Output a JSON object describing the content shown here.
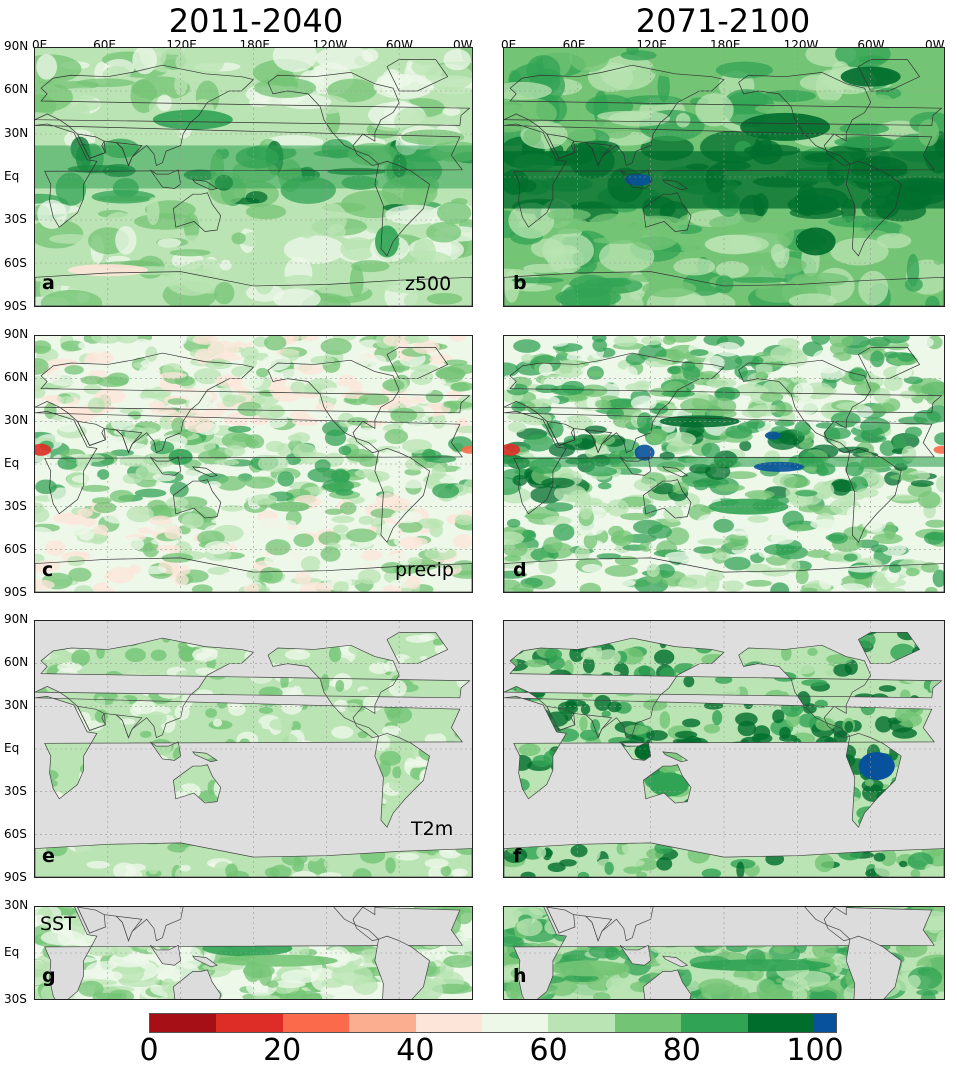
{
  "columns": [
    "2011-2040",
    "2071-2100"
  ],
  "lon_ticks": [
    "0E",
    "60E",
    "120E",
    "180E",
    "120W",
    "60W",
    "0W"
  ],
  "lat_ticks_full": [
    "90N",
    "60N",
    "30N",
    "Eq",
    "30S",
    "60S",
    "90S"
  ],
  "lat_ticks_sst": [
    "30N",
    "Eq",
    "30S"
  ],
  "panels": [
    {
      "letter": "a",
      "variable": "z500"
    },
    {
      "letter": "b",
      "variable": ""
    },
    {
      "letter": "c",
      "variable": "precip"
    },
    {
      "letter": "d",
      "variable": ""
    },
    {
      "letter": "e",
      "variable": "T2m"
    },
    {
      "letter": "f",
      "variable": ""
    },
    {
      "letter": "g",
      "variable": "SST"
    },
    {
      "letter": "h",
      "variable": ""
    }
  ],
  "colorbar": {
    "colors": [
      "#a50f15",
      "#de2d26",
      "#fb6a4a",
      "#fcae91",
      "#fee5d9",
      "#edf8e9",
      "#bae4b3",
      "#74c476",
      "#31a354",
      "#006d2c",
      "#08519c"
    ],
    "ticks": [
      "0",
      "20",
      "40",
      "60",
      "80",
      "100"
    ]
  },
  "chart_data": {
    "type": "heatmap",
    "title": "",
    "xlabel": "",
    "ylabel": "",
    "xlim": [
      0,
      360
    ],
    "ylim": [
      -90,
      90
    ],
    "color_range": [
      0,
      100
    ],
    "rows": [
      "z500",
      "precip",
      "T2m",
      "SST"
    ],
    "cols": [
      "2011-2040",
      "2071-2100"
    ]
  }
}
